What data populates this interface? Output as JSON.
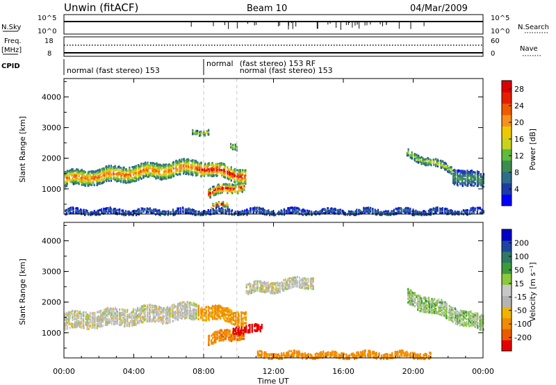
{
  "header": {
    "title": "Unwin (fitACF)",
    "beam": "Beam 10",
    "date": "04/Mar/2009"
  },
  "aux": {
    "nsky_label": "N.Sky",
    "nsky_ticks": [
      "10^5",
      "10^0"
    ],
    "nsearch_label": "N.Search",
    "nsearch_ticks": [
      "10^5",
      "10^0"
    ],
    "freq_label": "Freq.",
    "freq_unit": "[MHz]",
    "freq_ticks": [
      "18",
      "8"
    ],
    "nave_label": "Nave",
    "nave_ticks": [
      "60",
      "0"
    ],
    "cpid_label": "CPID",
    "cpid_entries": [
      {
        "start_hour": 0,
        "text": "normal (fast stereo) 153",
        "row": 1
      },
      {
        "start_hour": 8.0,
        "text": "normal",
        "row": 0
      },
      {
        "start_hour": 9.9,
        "text": "(fast stereo) 153 RF",
        "row": 0
      },
      {
        "start_hour": 9.9,
        "text": "normal (fast stereo) 153",
        "row": 1
      }
    ]
  },
  "colors": {
    "power_scale": [
      "#0000ff",
      "#1e3ca8",
      "#2e6e8a",
      "#3c8c50",
      "#5fba3e",
      "#c8d21e",
      "#f0c800",
      "#f7901e",
      "#f05a00",
      "#e61e00",
      "#dc0000"
    ],
    "velocity_scale": [
      "#0000c8",
      "#1e46a0",
      "#2e7864",
      "#3c9a3c",
      "#8cc83c",
      "#c8c8c8",
      "#b4b4b4",
      "#f0b400",
      "#f08c00",
      "#ec5a00",
      "#e60000"
    ]
  },
  "chart_data": [
    {
      "type": "heatmap",
      "name": "power",
      "xlabel": "",
      "ylabel": "Slant Range [km]",
      "xlim": [
        0,
        24
      ],
      "ylim": [
        180,
        4600
      ],
      "yticks": [
        1000,
        2000,
        3000,
        4000
      ],
      "colorbar": {
        "label": "Power [dB]",
        "ticks": [
          4,
          8,
          12,
          16,
          20,
          24,
          28
        ],
        "range": [
          0,
          30
        ]
      },
      "regions": [
        {
          "hours": [
            0,
            7.6
          ],
          "range_center_start": 1350,
          "range_center_end": 1750,
          "width": 500,
          "peak_db": 24
        },
        {
          "hours": [
            7.6,
            10.4
          ],
          "range_center_start": 1750,
          "range_center_end": 1450,
          "width": 450,
          "peak_db": 30
        },
        {
          "hours": [
            8.2,
            10.3
          ],
          "range_center_start": 900,
          "range_center_end": 1150,
          "width": 300,
          "peak_db": 30
        },
        {
          "hours": [
            8.4,
            9.4
          ],
          "range_center_start": 450,
          "range_center_end": 500,
          "width": 150,
          "peak_db": 28
        },
        {
          "hours": [
            7.3,
            8.3
          ],
          "range_center_start": 2900,
          "range_center_end": 2900,
          "width": 160,
          "peak_db": 16
        },
        {
          "hours": [
            9.5,
            9.9
          ],
          "range_center_start": 2450,
          "range_center_end": 2450,
          "width": 200,
          "peak_db": 16
        },
        {
          "hours": [
            19.6,
            22.2
          ],
          "range_center_start": 2200,
          "range_center_end": 1650,
          "width": 250,
          "peak_db": 16
        },
        {
          "hours": [
            22.2,
            24
          ],
          "range_center_start": 1500,
          "range_center_end": 1250,
          "width": 500,
          "peak_db": 10
        },
        {
          "hours": [
            0,
            24
          ],
          "range_center_start": 280,
          "range_center_end": 280,
          "width": 180,
          "peak_db": 6
        }
      ]
    },
    {
      "type": "heatmap",
      "name": "velocity",
      "xlabel": "Time UT",
      "ylabel": "Slant Range [km]",
      "xlim": [
        0,
        24
      ],
      "ylim": [
        180,
        4600
      ],
      "xticks": [
        "00:00",
        "04:00",
        "08:00",
        "12:00",
        "16:00",
        "20:00",
        "00:00"
      ],
      "yticks": [
        1000,
        2000,
        3000,
        4000
      ],
      "colorbar": {
        "label": "Velocity [m s⁻¹]",
        "ticks": [
          200,
          100,
          50,
          15,
          -15,
          -50,
          -100,
          -200
        ],
        "range": [
          -250,
          250
        ]
      },
      "regions": [
        {
          "hours": [
            0,
            7.6
          ],
          "range_center_start": 1400,
          "range_center_end": 1750,
          "width": 550,
          "velocity": 0
        },
        {
          "hours": [
            7.6,
            10.4
          ],
          "range_center_start": 1750,
          "range_center_end": 1500,
          "width": 450,
          "velocity": -60
        },
        {
          "hours": [
            8.2,
            10.3
          ],
          "range_center_start": 800,
          "range_center_end": 1050,
          "width": 350,
          "velocity": -90
        },
        {
          "hours": [
            9.6,
            11.3
          ],
          "range_center_start": 1150,
          "range_center_end": 1150,
          "width": 250,
          "velocity": -220
        },
        {
          "hours": [
            10.4,
            14.3
          ],
          "range_center_start": 2450,
          "range_center_end": 2700,
          "width": 350,
          "velocity": 0
        },
        {
          "hours": [
            19.6,
            24
          ],
          "range_center_start": 2200,
          "range_center_end": 1300,
          "width": 500,
          "velocity": 20
        },
        {
          "hours": [
            11,
            21
          ],
          "range_center_start": 300,
          "range_center_end": 300,
          "width": 200,
          "velocity": -80
        }
      ]
    }
  ]
}
